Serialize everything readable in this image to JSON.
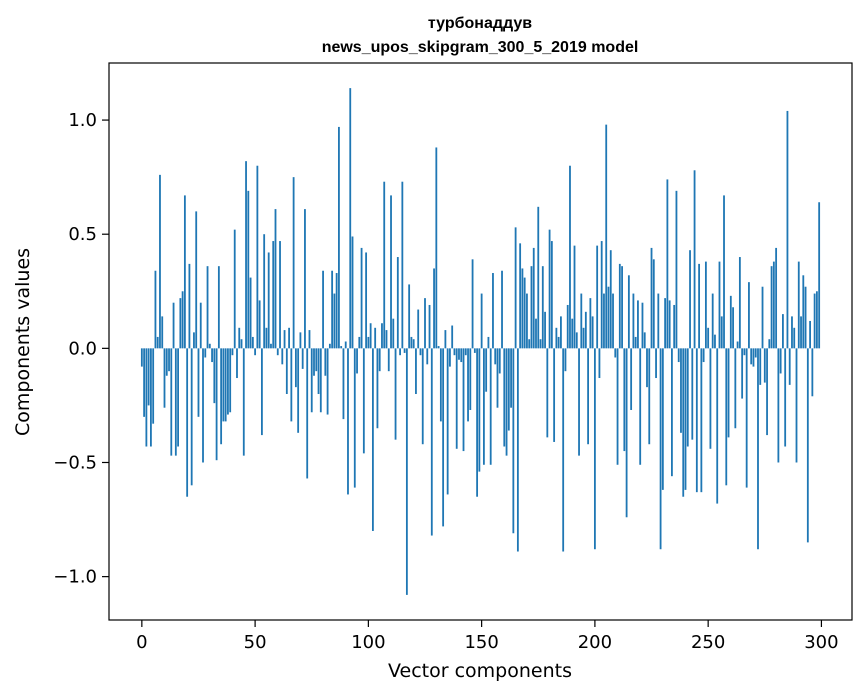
{
  "chart_data": {
    "type": "bar",
    "title": "турбонаддув",
    "subtitle": "news_upos_skipgram_300_5_2019 model",
    "xlabel": "Vector components",
    "ylabel": "Components values",
    "xlim": [
      -14.5,
      313.5
    ],
    "ylim": [
      -1.19,
      1.25
    ],
    "xticks": [
      0,
      50,
      100,
      150,
      200,
      250,
      300
    ],
    "yticks": [
      -1.0,
      -0.5,
      0.0,
      0.5,
      1.0
    ],
    "xtick_labels": [
      "0",
      "50",
      "100",
      "150",
      "200",
      "250",
      "300"
    ],
    "ytick_labels": [
      "−1.0",
      "−0.5",
      "0.0",
      "0.5",
      "1.0"
    ],
    "bar_color": "#1f77b4",
    "grid": false,
    "legend": "none",
    "values": [
      -0.08,
      -0.3,
      -0.43,
      -0.25,
      -0.43,
      -0.33,
      0.34,
      0.05,
      0.76,
      0.14,
      -0.26,
      -0.12,
      -0.1,
      -0.47,
      0.2,
      -0.47,
      -0.43,
      0.22,
      0.25,
      0.67,
      -0.65,
      0.37,
      -0.6,
      0.07,
      0.6,
      -0.3,
      0.2,
      -0.5,
      -0.04,
      0.36,
      0.02,
      -0.06,
      -0.24,
      -0.49,
      0.36,
      -0.42,
      -0.32,
      -0.32,
      -0.29,
      -0.28,
      -0.03,
      0.52,
      -0.13,
      0.09,
      0.04,
      -0.47,
      0.82,
      0.69,
      0.31,
      0.05,
      -0.03,
      0.8,
      0.21,
      -0.38,
      0.5,
      0.09,
      0.42,
      0.02,
      0.47,
      0.61,
      -0.03,
      0.47,
      -0.07,
      0.08,
      -0.2,
      0.09,
      -0.32,
      0.75,
      -0.17,
      -0.37,
      0.07,
      -0.09,
      0.61,
      -0.57,
      0.08,
      -0.28,
      -0.12,
      -0.1,
      -0.2,
      -0.28,
      0.34,
      -0.12,
      -0.29,
      0.02,
      0.34,
      0.24,
      0.33,
      0.97,
      0.01,
      -0.31,
      0.03,
      -0.64,
      1.14,
      0.49,
      -0.61,
      -0.11,
      0.05,
      0.44,
      -0.46,
      0.42,
      0.05,
      0.11,
      -0.8,
      0.09,
      -0.35,
      -0.1,
      0.11,
      0.73,
      0.08,
      -0.1,
      0.67,
      0.13,
      -0.4,
      0.4,
      -0.03,
      0.73,
      -0.02,
      -1.08,
      0.28,
      0.05,
      0.04,
      -0.2,
      0.17,
      -0.03,
      -0.42,
      0.22,
      -0.07,
      0.19,
      -0.82,
      0.35,
      0.88,
      0.01,
      -0.32,
      -0.78,
      0.08,
      -0.64,
      -0.08,
      0.1,
      -0.03,
      -0.44,
      -0.05,
      -0.06,
      -0.45,
      -0.03,
      -0.32,
      -0.27,
      0.39,
      -0.02,
      -0.65,
      -0.54,
      0.24,
      -0.51,
      -0.19,
      0.05,
      -0.51,
      0.33,
      -0.07,
      -0.26,
      -0.11,
      0.34,
      -0.43,
      -0.47,
      -0.36,
      -0.26,
      -0.81,
      0.53,
      -0.89,
      0.46,
      0.35,
      0.31,
      0.24,
      0.04,
      0.36,
      0.44,
      0.13,
      0.62,
      0.04,
      0.36,
      0.16,
      -0.39,
      0.52,
      0.47,
      -0.41,
      0.09,
      0.05,
      0.14,
      -0.89,
      -0.1,
      0.19,
      0.8,
      0.13,
      0.45,
      0.07,
      -0.47,
      0.24,
      0.09,
      0.16,
      -0.42,
      0.22,
      0.14,
      -0.88,
      0.45,
      -0.13,
      0.47,
      0.24,
      0.98,
      0.27,
      0.43,
      0.24,
      -0.04,
      -0.51,
      0.37,
      0.36,
      -0.45,
      -0.74,
      0.32,
      -0.27,
      0.24,
      0.05,
      0.21,
      -0.51,
      0.2,
      0.07,
      -0.17,
      -0.42,
      0.44,
      0.39,
      -0.13,
      0.24,
      -0.88,
      -0.62,
      0.22,
      0.74,
      0.21,
      -0.56,
      0.19,
      0.69,
      -0.06,
      -0.37,
      -0.65,
      -0.62,
      -0.43,
      0.43,
      -0.4,
      0.78,
      -0.63,
      0.37,
      -0.63,
      -0.06,
      0.38,
      0.09,
      -0.44,
      0.24,
      0.06,
      -0.68,
      0.38,
      0.14,
      0.67,
      -0.6,
      -0.39,
      0.23,
      0.18,
      -0.35,
      0.03,
      0.4,
      -0.22,
      -0.03,
      -0.61,
      0.29,
      -0.07,
      -0.08,
      -0.04,
      -0.88,
      -0.16,
      0.27,
      -0.15,
      -0.38,
      0.04,
      0.36,
      0.38,
      0.44,
      -0.5,
      -0.11,
      0.15,
      -0.43,
      1.04,
      -0.16,
      0.14,
      0.09,
      -0.5,
      0.38,
      0.14,
      0.32,
      0.27,
      -0.85,
      0.12,
      -0.21,
      0.24,
      0.25,
      0.64
    ]
  }
}
